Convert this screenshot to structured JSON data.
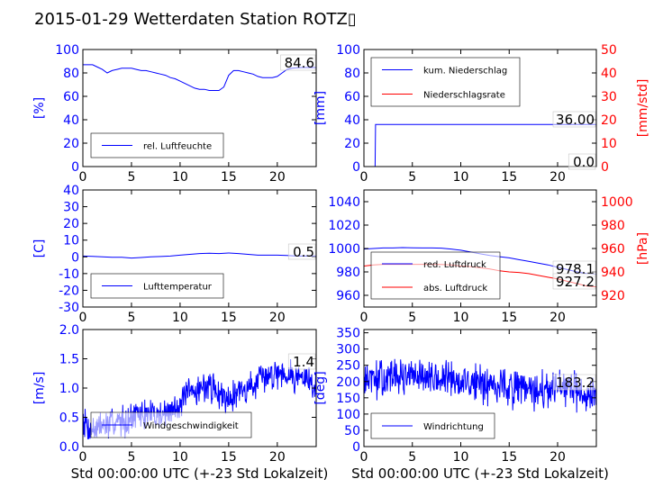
{
  "title": "2015-01-29 Wetterdaten Station ROTZ▯",
  "xlabel": "Std 00:00:00 UTC (+-23 Std Lokalzeit)",
  "colors": {
    "blue": "#0000ff",
    "red": "#ff0000",
    "black": "#000000"
  },
  "chart_data": [
    {
      "id": "humidity",
      "type": "line",
      "ylabel": "[%]",
      "ylabel_color": "#0000ff",
      "xlim": [
        0,
        24
      ],
      "ylim": [
        0,
        100
      ],
      "yticks": [
        0,
        20,
        40,
        60,
        80,
        100
      ],
      "ytick_color": "#0000ff",
      "xticks": [
        0,
        5,
        10,
        15,
        20
      ],
      "grid": false,
      "legend_placement": "lower-left",
      "noisy": false,
      "value_label": "84.6",
      "series": [
        {
          "name": "rel. Luftfeuchte",
          "color": "#0000ff",
          "x": [
            0,
            0.5,
            1,
            1.5,
            2,
            2.5,
            3,
            3.5,
            4,
            4.5,
            5,
            5.5,
            6,
            6.5,
            7,
            7.5,
            8,
            8.5,
            9,
            9.5,
            10,
            10.5,
            11,
            11.5,
            12,
            12.5,
            13,
            13.5,
            14,
            14.5,
            15,
            15.5,
            16,
            16.5,
            17,
            17.5,
            18,
            18.5,
            19,
            19.5,
            20,
            20.5,
            21,
            21.5,
            22,
            22.5,
            23,
            23.5,
            24
          ],
          "y": [
            87,
            87,
            87,
            85,
            83,
            80,
            82,
            83,
            84,
            84,
            84,
            83,
            82,
            82,
            81,
            80,
            79,
            78,
            76,
            75,
            73,
            71,
            69,
            67,
            66,
            66,
            65,
            65,
            65,
            68,
            78,
            82,
            82,
            81,
            80,
            79,
            77,
            76,
            76,
            76,
            77,
            80,
            83,
            84,
            84.5,
            84.6,
            84.6,
            84.6,
            84.6
          ]
        }
      ]
    },
    {
      "id": "precipitation",
      "type": "line",
      "ylabel": "[mm]",
      "ylabel_color": "#0000ff",
      "xlim": [
        0,
        24
      ],
      "ylim": [
        0,
        100
      ],
      "yticks": [
        0,
        20,
        40,
        60,
        80,
        100
      ],
      "ytick_color": "#0000ff",
      "y2label": "[mm/std]",
      "y2label_color": "#ff0000",
      "y2lim": [
        0,
        50
      ],
      "y2ticks": [
        0,
        10,
        20,
        30,
        40,
        50
      ],
      "y2tick_color": "#ff0000",
      "xticks": [
        0,
        5,
        10,
        15,
        20
      ],
      "grid": false,
      "legend_placement": "upper-left",
      "noisy": false,
      "value_label": "36.00",
      "value_label2": "0.0",
      "series": [
        {
          "name": "kum. Niederschlag",
          "color": "#0000ff",
          "x": [
            1,
            1.15,
            1.2,
            24
          ],
          "y": [
            0,
            0,
            36,
            36
          ]
        },
        {
          "name": "Niederschlagsrate",
          "color": "#ff0000",
          "axis": "y2",
          "x": [
            0,
            24
          ],
          "y": [
            0,
            0
          ]
        }
      ]
    },
    {
      "id": "temperature",
      "type": "line",
      "ylabel": "[C]",
      "ylabel_color": "#0000ff",
      "xlim": [
        0,
        24
      ],
      "ylim": [
        -30,
        40
      ],
      "yticks": [
        -30,
        -20,
        -10,
        0,
        10,
        20,
        30,
        40
      ],
      "ytick_color": "#0000ff",
      "xticks": [
        0,
        5,
        10,
        15,
        20
      ],
      "grid": false,
      "legend_placement": "lower-left",
      "noisy": false,
      "value_label": "0.5",
      "series": [
        {
          "name": "Lufttemperatur",
          "color": "#0000ff",
          "x": [
            0,
            1,
            2,
            3,
            4,
            5,
            6,
            7,
            8,
            9,
            10,
            11,
            12,
            13,
            14,
            15,
            16,
            17,
            18,
            19,
            20,
            21,
            22,
            23,
            24
          ],
          "y": [
            0.5,
            0.3,
            0,
            -0.3,
            -0.3,
            -0.7,
            -0.4,
            0,
            0.2,
            0.5,
            1,
            1.5,
            2,
            2.2,
            2,
            2.3,
            2,
            1.5,
            1,
            1,
            1,
            0.8,
            0.5,
            0.5,
            0.5
          ]
        }
      ]
    },
    {
      "id": "pressure",
      "type": "line",
      "ylabel": "",
      "ylabel_color": "#0000ff",
      "xlim": [
        0,
        24
      ],
      "ylim": [
        950,
        1050
      ],
      "yticks": [
        960,
        980,
        1000,
        1020,
        1040
      ],
      "ytick_color": "#0000ff",
      "y2label": "[hPa]",
      "y2label_color": "#ff0000",
      "y2lim": [
        910,
        1010
      ],
      "y2ticks": [
        920,
        940,
        960,
        980,
        1000
      ],
      "y2tick_color": "#ff0000",
      "xticks": [
        0,
        5,
        10,
        15,
        20
      ],
      "grid": false,
      "legend_placement": "lower-left",
      "noisy": false,
      "value_label": "978.1",
      "value_label2": "927.2",
      "series": [
        {
          "name": "red. Luftdruck",
          "color": "#0000ff",
          "x": [
            0,
            1,
            2,
            3,
            4,
            5,
            6,
            7,
            8,
            9,
            10,
            11,
            12,
            13,
            14,
            15,
            16,
            17,
            18,
            19,
            20,
            21,
            22,
            23,
            24
          ],
          "y": [
            999.5,
            1000,
            1000.5,
            1000.5,
            1000.8,
            1000.6,
            1000.5,
            1000.5,
            1000.3,
            999.5,
            998.5,
            997,
            995.5,
            994,
            993,
            992,
            990.5,
            989,
            987.5,
            986,
            984,
            982,
            980,
            978.5,
            978.1
          ]
        },
        {
          "name": "abs. Luftdruck",
          "color": "#ff0000",
          "axis": "y2",
          "x": [
            0,
            1,
            2,
            3,
            4,
            5,
            6,
            7,
            8,
            9,
            10,
            11,
            12,
            13,
            14,
            15,
            16,
            17,
            18,
            19,
            20,
            21,
            22,
            23,
            24
          ],
          "y": [
            945,
            946,
            946.5,
            946.5,
            946.5,
            946.5,
            946.5,
            946.3,
            946.3,
            946,
            945,
            944.5,
            943.5,
            942.5,
            941,
            940,
            939.5,
            938.5,
            937,
            935.5,
            934,
            932,
            930,
            928,
            927.2
          ]
        }
      ]
    },
    {
      "id": "windspeed",
      "type": "line",
      "ylabel": "[m/s]",
      "ylabel_color": "#0000ff",
      "xlim": [
        0,
        24
      ],
      "ylim": [
        0,
        2.0
      ],
      "yticks": [
        "0.0",
        "0.5",
        "1.0",
        "1.5",
        "2.0"
      ],
      "ytick_color": "#0000ff",
      "xticks": [
        0,
        5,
        10,
        15,
        20
      ],
      "xlabel": "Std 00:00:00 UTC (+-23 Std Lokalzeit)",
      "grid": false,
      "legend_placement": "lower-left",
      "noisy": true,
      "noise_amp": 0.22,
      "seed": 7,
      "value_label": "1.4",
      "series": [
        {
          "name": "Windgeschwindigkeit",
          "color": "#0000ff",
          "x": [
            0,
            0.5,
            1,
            2,
            3,
            4,
            5,
            6,
            7,
            8,
            9,
            10,
            11,
            12,
            13,
            14,
            15,
            16,
            17,
            18,
            19,
            20,
            21,
            22,
            23,
            24
          ],
          "y": [
            0.5,
            0.35,
            0.3,
            0.35,
            0.4,
            0.45,
            0.5,
            0.55,
            0.55,
            0.55,
            0.6,
            0.75,
            0.9,
            1.0,
            1.05,
            0.9,
            0.85,
            0.95,
            1.0,
            1.1,
            1.2,
            1.3,
            1.25,
            1.2,
            1.15,
            1.0
          ]
        }
      ]
    },
    {
      "id": "winddirection",
      "type": "line",
      "ylabel": "[deg]",
      "ylabel_color": "#0000ff",
      "xlim": [
        0,
        24
      ],
      "ylim": [
        0,
        360
      ],
      "yticks": [
        0,
        50,
        100,
        150,
        200,
        250,
        300,
        350
      ],
      "ytick_color": "#0000ff",
      "xticks": [
        0,
        5,
        10,
        15,
        20
      ],
      "xlabel": "Std 00:00:00 UTC (+-23 Std Lokalzeit)",
      "grid": false,
      "legend_placement": "lower-left",
      "noisy": true,
      "noise_amp": 48,
      "seed": 13,
      "value_label": "183.2",
      "series": [
        {
          "name": "Windrichtung",
          "color": "#0000ff",
          "x": [
            0,
            2,
            4,
            6,
            8,
            10,
            12,
            14,
            16,
            18,
            20,
            22,
            24
          ],
          "y": [
            200,
            210,
            215,
            210,
            205,
            200,
            195,
            190,
            175,
            170,
            175,
            170,
            165
          ]
        }
      ]
    }
  ]
}
